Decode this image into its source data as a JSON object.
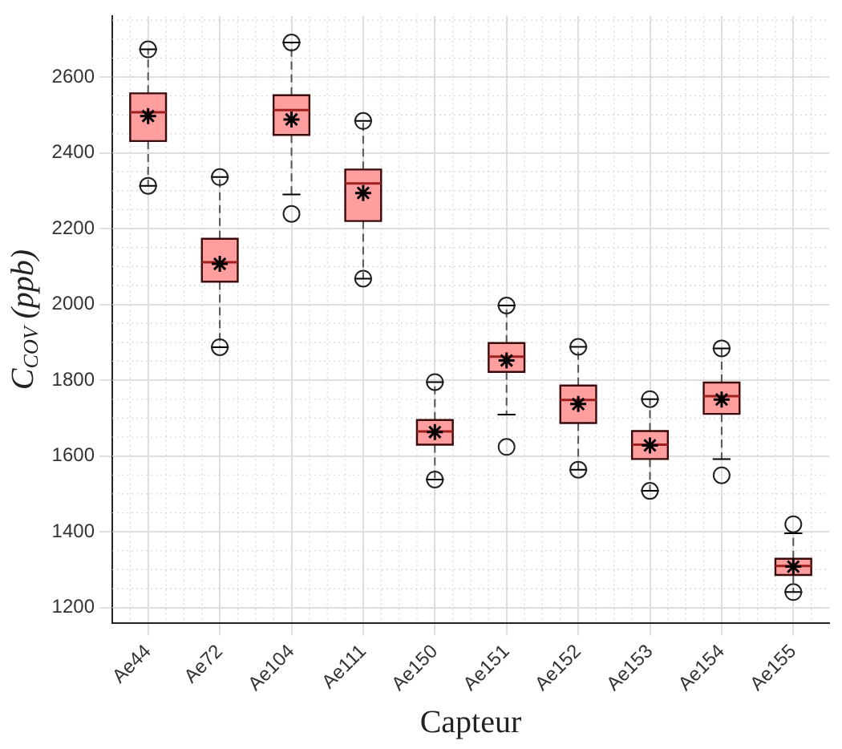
{
  "chart_data": {
    "type": "box",
    "xlabel": "Capteur",
    "ylabel": "C$_{COV}$ (ppb)",
    "categories": [
      "Ae44",
      "Ae72",
      "Ae104",
      "Ae111",
      "Ae150",
      "Ae151",
      "Ae152",
      "Ae153",
      "Ae154",
      "Ae155"
    ],
    "color": "#ff9999",
    "boxes": [
      {
        "low": 2313,
        "q1": 2431,
        "median": 2507,
        "q3": 2557,
        "high": 2673,
        "mean": 2497,
        "outliers": [
          2313,
          2673
        ]
      },
      {
        "low": 1887,
        "q1": 2060,
        "median": 2111,
        "q3": 2173,
        "high": 2336,
        "mean": 2107,
        "outliers": [
          1887,
          2336
        ]
      },
      {
        "low": 2290,
        "q1": 2447,
        "median": 2513,
        "q3": 2552,
        "high": 2691,
        "mean": 2488,
        "outliers": [
          2239,
          2691
        ]
      },
      {
        "low": 2068,
        "q1": 2220,
        "median": 2319,
        "q3": 2356,
        "high": 2484,
        "mean": 2294,
        "outliers": [
          2068,
          2484
        ]
      },
      {
        "low": 1538,
        "q1": 1630,
        "median": 1665,
        "q3": 1695,
        "high": 1795,
        "mean": 1663,
        "outliers": [
          1538,
          1795
        ]
      },
      {
        "low": 1709,
        "q1": 1822,
        "median": 1862,
        "q3": 1898,
        "high": 1997,
        "mean": 1852,
        "outliers": [
          1624,
          1997
        ]
      },
      {
        "low": 1564,
        "q1": 1687,
        "median": 1748,
        "q3": 1786,
        "high": 1888,
        "mean": 1737,
        "outliers": [
          1564,
          1888
        ]
      },
      {
        "low": 1508,
        "q1": 1592,
        "median": 1630,
        "q3": 1666,
        "high": 1750,
        "mean": 1628,
        "outliers": [
          1508,
          1750
        ]
      },
      {
        "low": 1592,
        "q1": 1711,
        "median": 1758,
        "q3": 1794,
        "high": 1884,
        "mean": 1749,
        "outliers": [
          1549,
          1884
        ]
      },
      {
        "low": 1241,
        "q1": 1286,
        "median": 1310,
        "q3": 1329,
        "high": 1396,
        "mean": 1308,
        "outliers": [
          1241,
          1420
        ]
      }
    ],
    "ylim": [
      1160,
      2760
    ],
    "yticks": [
      1200,
      1400,
      1600,
      1800,
      2000,
      2200,
      2400,
      2600
    ],
    "grid": true,
    "legend": false,
    "marker": "star"
  }
}
